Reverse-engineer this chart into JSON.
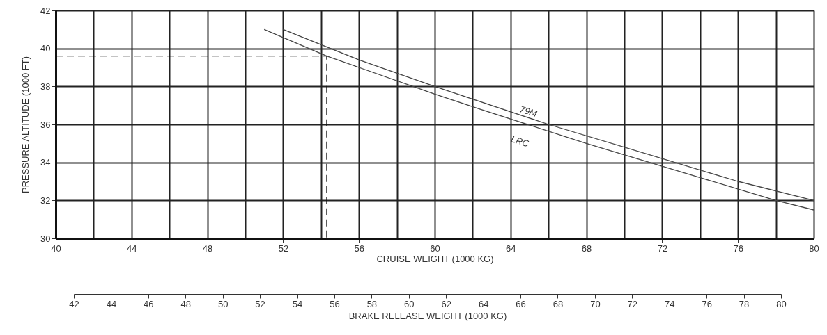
{
  "chart_data": {
    "type": "line",
    "xlabel": "CRUISE WEIGHT (1000 KG)",
    "ylabel": "PRESSURE ALTITUDE (1000 FT)",
    "x2label": "BRAKE RELEASE WEIGHT (1000 KG)",
    "xlim": [
      40,
      80
    ],
    "xticks": [
      40,
      44,
      48,
      52,
      56,
      60,
      64,
      68,
      72,
      76,
      80
    ],
    "ylim": [
      30,
      42
    ],
    "yticks": [
      30,
      32,
      34,
      36,
      38,
      40,
      42
    ],
    "x2lim": [
      42,
      80
    ],
    "x2ticks": [
      42,
      44,
      46,
      48,
      50,
      52,
      54,
      56,
      58,
      60,
      62,
      64,
      66,
      68,
      70,
      72,
      74,
      76,
      78,
      80
    ],
    "grid": true,
    "marker": "none",
    "series": [
      {
        "name": "79M",
        "color": "#444444",
        "line_style": "solid",
        "x": [
          52,
          56,
          60,
          66,
          72,
          76,
          80
        ],
        "values": [
          41,
          39.4,
          38,
          36.0,
          34.2,
          33.0,
          32.0
        ]
      },
      {
        "name": "LRC",
        "color": "#444444",
        "line_style": "solid",
        "x": [
          51,
          54.3,
          56,
          60,
          62.4,
          68,
          72,
          78,
          80
        ],
        "values": [
          41,
          39.6,
          39.0,
          37.6,
          36.8,
          35.0,
          33.8,
          32.0,
          31.5
        ]
      },
      {
        "color": "#111111",
        "line_style": "dashed",
        "x": [
          40,
          54.3,
          54.3
        ],
        "values": [
          39.6,
          39.6,
          30
        ]
      }
    ]
  }
}
